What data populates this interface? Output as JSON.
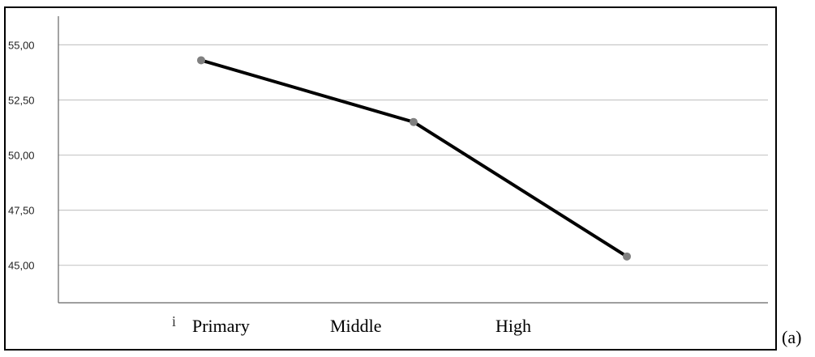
{
  "panel_label": "(a)",
  "stray_mark": "i",
  "chart_data": {
    "type": "line",
    "categories": [
      "Primary",
      "Middle",
      "High"
    ],
    "values": [
      54.3,
      51.5,
      45.4
    ],
    "title": "",
    "xlabel": "",
    "ylabel": "",
    "ylim": [
      43.3,
      56.3
    ],
    "yticks": [
      "45,00",
      "47,50",
      "50,00",
      "52,50",
      "55,00"
    ],
    "ytick_values": [
      45.0,
      47.5,
      50.0,
      52.5,
      55.0
    ],
    "grid": "horizontal",
    "colors": {
      "line": "#000000",
      "marker": "#808080",
      "grid": "#c8c8c8",
      "axis": "#666666"
    }
  }
}
